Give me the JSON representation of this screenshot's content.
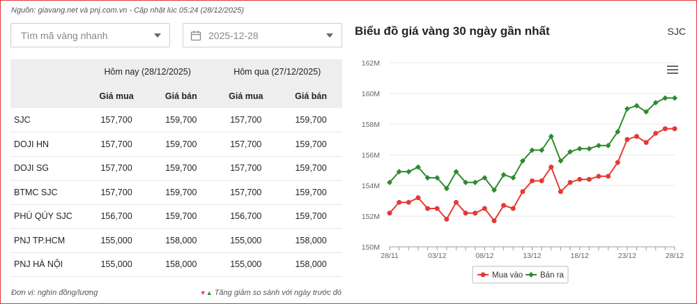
{
  "source_text": "Nguồn: giavang.net và pnj.com.vn - Cập nhật lúc 05:24 (28/12/2025)",
  "search": {
    "placeholder": "Tìm mã vàng nhanh"
  },
  "date": {
    "value": "2025-12-28"
  },
  "table": {
    "col_today": "Hôm nay (28/12/2025)",
    "col_yesterday": "Hôm qua (27/12/2025)",
    "buy": "Giá mua",
    "sell": "Giá bán",
    "rows": [
      {
        "name": "SJC",
        "t_buy": "157,700",
        "t_sell": "159,700",
        "y_buy": "157,700",
        "y_sell": "159,700"
      },
      {
        "name": "DOJI HN",
        "t_buy": "157,700",
        "t_sell": "159,700",
        "y_buy": "157,700",
        "y_sell": "159,700"
      },
      {
        "name": "DOJI SG",
        "t_buy": "157,700",
        "t_sell": "159,700",
        "y_buy": "157,700",
        "y_sell": "159,700"
      },
      {
        "name": "BTMC SJC",
        "t_buy": "157,700",
        "t_sell": "159,700",
        "y_buy": "157,700",
        "y_sell": "159,700"
      },
      {
        "name": "PHÚ QÚY SJC",
        "t_buy": "156,700",
        "t_sell": "159,700",
        "y_buy": "156,700",
        "y_sell": "159,700"
      },
      {
        "name": "PNJ TP.HCM",
        "t_buy": "155,000",
        "t_sell": "158,000",
        "y_buy": "155,000",
        "y_sell": "158,000"
      },
      {
        "name": "PNJ HÀ NỘI",
        "t_buy": "155,000",
        "t_sell": "158,000",
        "y_buy": "155,000",
        "y_sell": "158,000"
      }
    ]
  },
  "unit_text": "Đơn vị: nghìn đồng/lượng",
  "change_note": "Tăng giảm so sánh với ngày trước đó",
  "chart_title": "Biểu đồ giá vàng 30 ngày gần nhất",
  "chart_code": "SJC",
  "chart_data": {
    "type": "line",
    "x": [
      "28/11",
      "29/11",
      "30/11",
      "01/12",
      "02/12",
      "03/12",
      "04/12",
      "05/12",
      "06/12",
      "07/12",
      "08/12",
      "09/12",
      "10/12",
      "11/12",
      "12/12",
      "13/12",
      "14/12",
      "15/12",
      "16/12",
      "17/12",
      "18/12",
      "19/12",
      "20/12",
      "21/12",
      "22/12",
      "23/12",
      "24/12",
      "25/12",
      "26/12",
      "27/12",
      "28/12"
    ],
    "x_ticks": [
      "28/11",
      "03/12",
      "08/12",
      "13/12",
      "18/12",
      "23/12",
      "28/12"
    ],
    "y_ticks": [
      "150M",
      "152M",
      "154M",
      "156M",
      "158M",
      "160M",
      "162M"
    ],
    "ylim": [
      150,
      162
    ],
    "series": [
      {
        "name": "Mua vào",
        "color": "#e53935",
        "values": [
          152.2,
          152.9,
          152.9,
          153.2,
          152.5,
          152.5,
          151.8,
          152.9,
          152.2,
          152.2,
          152.5,
          151.7,
          152.7,
          152.5,
          153.6,
          154.3,
          154.3,
          155.2,
          153.6,
          154.2,
          154.4,
          154.4,
          154.6,
          154.6,
          155.5,
          157.0,
          157.2,
          156.8,
          157.4,
          157.7,
          157.7
        ]
      },
      {
        "name": "Bán ra",
        "color": "#2e8b2e",
        "values": [
          154.2,
          154.9,
          154.9,
          155.2,
          154.5,
          154.5,
          153.8,
          154.9,
          154.2,
          154.2,
          154.5,
          153.7,
          154.7,
          154.5,
          155.6,
          156.3,
          156.3,
          157.2,
          155.6,
          156.2,
          156.4,
          156.4,
          156.6,
          156.6,
          157.5,
          159.0,
          159.2,
          158.8,
          159.4,
          159.7,
          159.7
        ]
      }
    ]
  }
}
